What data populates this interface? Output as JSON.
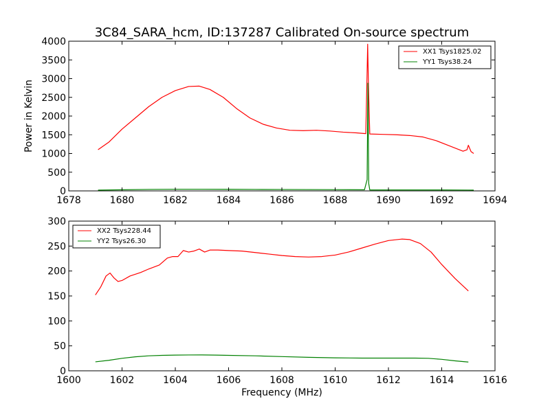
{
  "chart_data": [
    {
      "type": "line",
      "title": "3C84_SARA_hcm, ID:137287 Calibrated On-source spectrum",
      "xlabel": "",
      "ylabel": "Power in Kelvin",
      "xlim": [
        1678,
        1694
      ],
      "ylim": [
        0,
        4000
      ],
      "xticks": [
        "1678",
        "1680",
        "1682",
        "1684",
        "1686",
        "1688",
        "1690",
        "1692",
        "1694"
      ],
      "yticks": [
        "0",
        "500",
        "1000",
        "1500",
        "2000",
        "2500",
        "3000",
        "3500",
        "4000"
      ],
      "grid": false,
      "legend_position": "top-right",
      "series": [
        {
          "name": "XX1 Tsys1825.02",
          "color": "#ff0000",
          "x": [
            1679.1,
            1679.5,
            1680.0,
            1680.5,
            1681.0,
            1681.5,
            1682.0,
            1682.5,
            1682.9,
            1683.3,
            1683.8,
            1684.3,
            1684.8,
            1685.3,
            1685.8,
            1686.3,
            1686.8,
            1687.3,
            1687.8,
            1688.3,
            1688.8,
            1689.15,
            1689.2,
            1689.22,
            1689.25,
            1689.3,
            1689.8,
            1690.3,
            1690.8,
            1691.3,
            1691.8,
            1692.3,
            1692.8,
            1692.95,
            1693.0,
            1693.1,
            1693.2
          ],
          "y": [
            1100,
            1300,
            1650,
            1950,
            2250,
            2500,
            2680,
            2790,
            2800,
            2710,
            2500,
            2200,
            1950,
            1780,
            1680,
            1620,
            1610,
            1620,
            1600,
            1570,
            1550,
            1530,
            3200,
            3920,
            2800,
            1520,
            1510,
            1500,
            1480,
            1440,
            1340,
            1200,
            1060,
            1100,
            1220,
            1050,
            1000
          ]
        },
        {
          "name": "YY1 Tsys38.24",
          "color": "#008000",
          "x": [
            1679.1,
            1680.0,
            1681.0,
            1682.0,
            1683.0,
            1684.0,
            1685.0,
            1686.0,
            1687.0,
            1688.0,
            1689.1,
            1689.2,
            1689.23,
            1689.26,
            1689.3,
            1690.0,
            1691.0,
            1692.0,
            1693.0,
            1693.2
          ],
          "y": [
            20,
            30,
            40,
            45,
            45,
            43,
            40,
            38,
            36,
            33,
            30,
            300,
            2880,
            200,
            25,
            25,
            25,
            25,
            22,
            20
          ]
        }
      ]
    },
    {
      "type": "line",
      "title": "",
      "xlabel": "Frequency (MHz)",
      "ylabel": "",
      "xlim": [
        1600,
        1616
      ],
      "ylim": [
        0,
        300
      ],
      "xticks": [
        "1600",
        "1602",
        "1604",
        "1606",
        "1608",
        "1610",
        "1612",
        "1614",
        "1616"
      ],
      "yticks": [
        "0",
        "50",
        "100",
        "150",
        "200",
        "250",
        "300"
      ],
      "grid": false,
      "legend_position": "top-left",
      "series": [
        {
          "name": "XX2 Tsys228.44",
          "color": "#ff0000",
          "x": [
            1601.0,
            1601.2,
            1601.4,
            1601.55,
            1601.7,
            1601.85,
            1602.0,
            1602.3,
            1602.7,
            1603.0,
            1603.4,
            1603.7,
            1603.9,
            1604.1,
            1604.3,
            1604.5,
            1604.7,
            1604.9,
            1605.1,
            1605.3,
            1605.6,
            1606.0,
            1606.5,
            1607.0,
            1607.5,
            1608.0,
            1608.5,
            1609.0,
            1609.5,
            1610.0,
            1610.5,
            1611.0,
            1611.5,
            1612.0,
            1612.5,
            1612.8,
            1613.2,
            1613.6,
            1614.0,
            1614.5,
            1615.0
          ],
          "y": [
            152,
            168,
            190,
            196,
            186,
            179,
            181,
            190,
            197,
            204,
            212,
            226,
            229,
            229,
            241,
            238,
            240,
            244,
            238,
            242,
            242,
            241,
            240,
            237,
            234,
            231,
            229,
            228,
            229,
            232,
            238,
            246,
            254,
            261,
            264,
            263,
            255,
            238,
            213,
            185,
            160
          ]
        },
        {
          "name": "YY2 Tsys26.30",
          "color": "#008000",
          "x": [
            1601.0,
            1601.5,
            1602.0,
            1602.5,
            1603.0,
            1603.5,
            1604.0,
            1604.5,
            1605.0,
            1605.5,
            1606.0,
            1607.0,
            1608.0,
            1609.0,
            1610.0,
            1611.0,
            1612.0,
            1613.0,
            1613.5,
            1614.0,
            1614.5,
            1615.0
          ],
          "y": [
            18,
            21,
            25,
            28,
            30,
            31,
            31.5,
            31.7,
            31.8,
            31.5,
            31,
            30,
            28.5,
            27,
            26,
            25.5,
            25.5,
            25.5,
            25,
            23,
            20,
            17.5
          ]
        }
      ]
    }
  ]
}
